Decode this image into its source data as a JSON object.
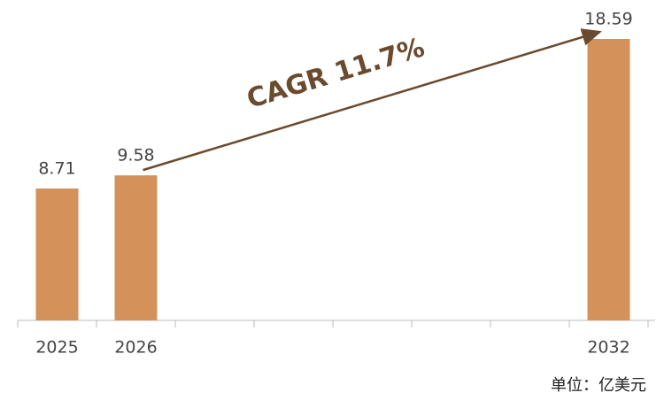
{
  "chart_data": {
    "type": "bar",
    "categories": [
      "2025",
      "2026",
      null,
      null,
      null,
      null,
      null,
      "2032"
    ],
    "values": [
      8.71,
      9.58,
      null,
      null,
      null,
      null,
      null,
      18.59
    ],
    "color": "#d4925a",
    "annotation": "CAGR 11.7%",
    "annotation_color": "#6b4a2e",
    "unit_label": "单位：亿美元"
  }
}
